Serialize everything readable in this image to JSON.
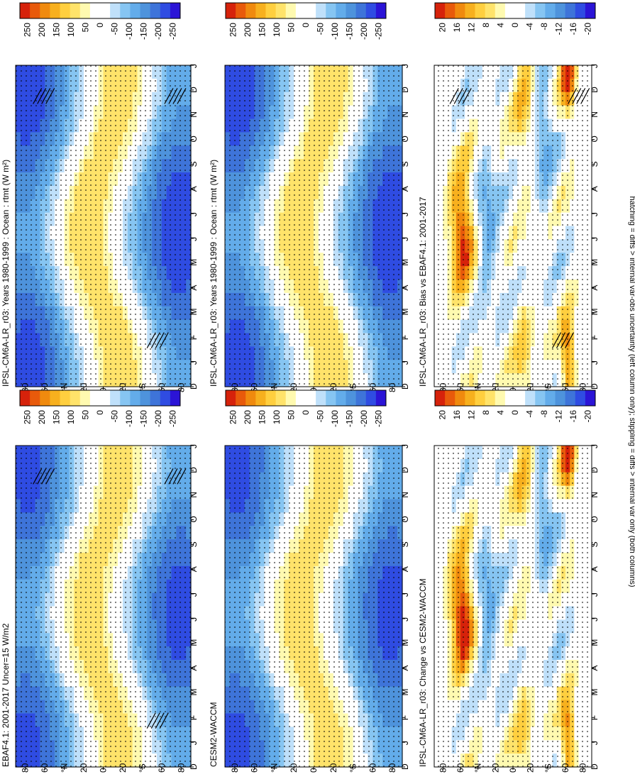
{
  "figure": {
    "footer": "hatching = diffs > internal var-obs uncertainty (left column only); stippling = diffs > internal var only (both columns)"
  },
  "common": {
    "month_ticks": [
      "D",
      "J",
      "F",
      "M",
      "A",
      "M",
      "J",
      "J",
      "A",
      "S",
      "O",
      "N",
      "D",
      "J"
    ],
    "lat_ticks": [
      "80",
      "60",
      "°N",
      "20",
      "0",
      "20",
      "°S",
      "60",
      "80"
    ],
    "lat_values": [
      80,
      60,
      40,
      20,
      0,
      -20,
      -40,
      -60,
      -80
    ]
  },
  "colors": {
    "main_scale": [
      "#2b14d6",
      "#2f4ce2",
      "#3e74d9",
      "#4e93dc",
      "#63acea",
      "#86c5f2",
      "#bfe0fa",
      "#ffffff",
      "#ffffff",
      "#fffab0",
      "#ffe36a",
      "#ffcf3f",
      "#f7b01e",
      "#f08a0e",
      "#e85a0b",
      "#d6220b"
    ],
    "diff_scale": [
      "#2b14d6",
      "#2f4ce2",
      "#3e74d9",
      "#4e93dc",
      "#63acea",
      "#86c5f2",
      "#bfe0fa",
      "#ffffff",
      "#ffffff",
      "#fffab0",
      "#ffe36a",
      "#ffcf3f",
      "#f7b01e",
      "#f08a0e",
      "#e85a0b",
      "#d6220b"
    ]
  },
  "chart_data": [
    {
      "type": "heatmap",
      "title": "IPSL-CM6A-LR_r03: Years 1980-1999 : Ocean : rtmt (W m²)",
      "x": "month (Dec–Jan)",
      "y": "latitude",
      "colorbar_labels": [
        "250",
        "200",
        "150",
        "100",
        "50",
        "0",
        "-50",
        "-100",
        "-150",
        "-200",
        "-250"
      ],
      "vmin": -275,
      "vmax": 275,
      "kind": "mean",
      "hatch": true
    },
    {
      "type": "heatmap",
      "title": "IPSL-CM6A-LR_r03: Years 1980-1999 : Ocean : rtmt (W m²)",
      "x": "month (Dec–Jan)",
      "y": "latitude",
      "colorbar_labels": [
        "250",
        "200",
        "150",
        "100",
        "50",
        "0",
        "-50",
        "-100",
        "-150",
        "-200",
        "-250"
      ],
      "vmin": -275,
      "vmax": 275,
      "kind": "mean",
      "hatch": false
    },
    {
      "type": "heatmap",
      "title": "EBAF4.1: 2001-2017 Uncer=15 W/m2",
      "x": "month (Dec–Jan)",
      "y": "latitude",
      "colorbar_labels": [
        "250",
        "200",
        "150",
        "100",
        "50",
        "0",
        "-50",
        "-100",
        "-150",
        "-200",
        "-250"
      ],
      "vmin": -275,
      "vmax": 275,
      "kind": "mean",
      "hatch": true
    },
    {
      "type": "heatmap",
      "title": "CESM2-WACCM",
      "x": "month (Dec–Jan)",
      "y": "latitude",
      "colorbar_labels": [
        "250",
        "200",
        "150",
        "100",
        "50",
        "0",
        "-50",
        "-100",
        "-150",
        "-200",
        "-250"
      ],
      "vmin": -275,
      "vmax": 275,
      "kind": "mean",
      "hatch": false
    },
    {
      "type": "heatmap",
      "title": "IPSL-CM6A-LR_r03: Bias vs EBAF4.1: 2001-2017",
      "x": "month (Dec–Jan)",
      "y": "latitude",
      "colorbar_labels": [
        "20",
        "16",
        "12",
        "8",
        "4",
        "0",
        "-4",
        "-8",
        "-12",
        "-16",
        "-20"
      ],
      "vmin": -22,
      "vmax": 22,
      "kind": "bias",
      "hatch": true
    },
    {
      "type": "heatmap",
      "title": "IPSL-CM6A-LR_r03: Change vs CESM2-WACCM",
      "x": "month (Dec–Jan)",
      "y": "latitude",
      "colorbar_labels": [
        "20",
        "16",
        "12",
        "8",
        "4",
        "0",
        "-4",
        "-8",
        "-12",
        "-16",
        "-20"
      ],
      "vmin": -22,
      "vmax": 22,
      "kind": "change",
      "hatch": false
    }
  ]
}
